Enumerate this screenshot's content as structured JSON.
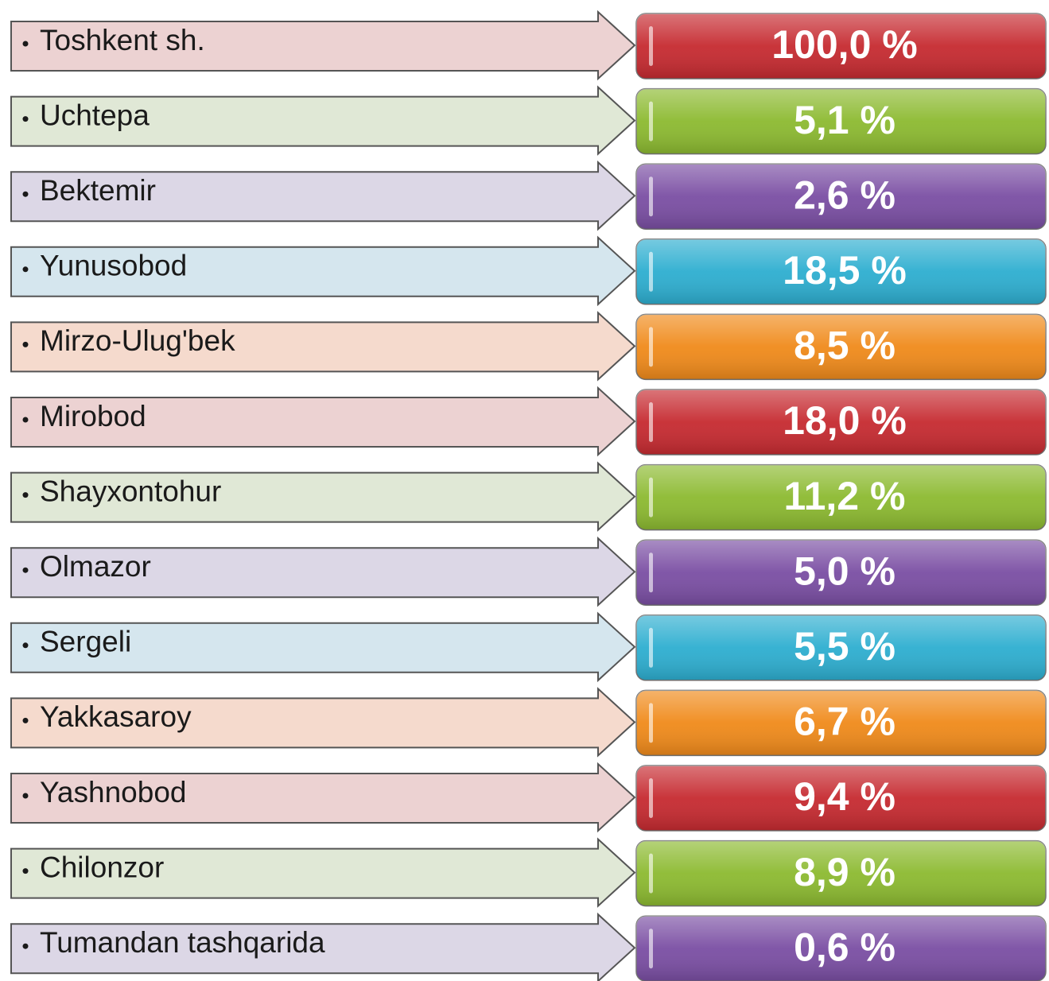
{
  "items": [
    {
      "label": "Toshkent sh.",
      "value": "100,0 %"
    },
    {
      "label": "Uchtepa",
      "value": "5,1 %"
    },
    {
      "label": "Bektemir",
      "value": "2,6 %"
    },
    {
      "label": "Yunusobod",
      "value": "18,5 %"
    },
    {
      "label": "Mirzo-Ulug'bek",
      "value": "8,5 %"
    },
    {
      "label": "Mirobod",
      "value": "18,0 %"
    },
    {
      "label": "Shayxontohur",
      "value": "11,2 %"
    },
    {
      "label": "Olmazor",
      "value": "5,0 %"
    },
    {
      "label": "Sergeli",
      "value": "5,5 %"
    },
    {
      "label": "Yakkasaroy",
      "value": "6,7 %"
    },
    {
      "label": "Yashnobod",
      "value": "9,4 %"
    },
    {
      "label": "Chilonzor",
      "value": "8,9 %"
    },
    {
      "label": "Tumandan tashqarida",
      "value": "0,6 %"
    }
  ]
}
